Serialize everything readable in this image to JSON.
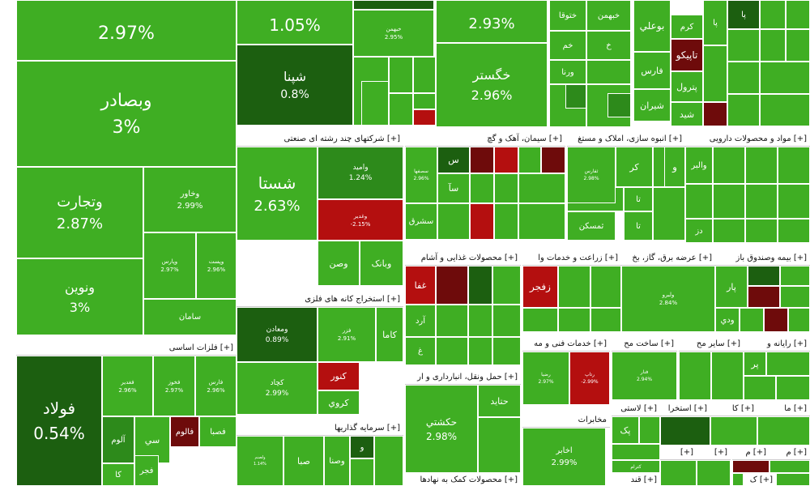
{
  "colors": {
    "green": "#3fae23",
    "green_dark": "#2d8a1b",
    "green_darker": "#1c5f10",
    "red": "#b40f0f",
    "red_dark": "#6e0b0b",
    "header_bg": "#ffffff"
  },
  "chart_data": {
    "type": "treemap",
    "title": "",
    "groups": [
      {
        "name": "[+] فلزات اساسی"
      },
      {
        "name": "[+] شرکتهای چند رشته ای صنعتی"
      },
      {
        "name": "[+] استخراج کانه های فلزی"
      },
      {
        "name": "[+] سرمایه گذاریها"
      },
      {
        "name": "[+] سیمان، آهک و گچ"
      },
      {
        "name": "[+] انبوه سازی، املاک و مستغ"
      },
      {
        "name": "[+] مواد و محصولات دارویی"
      },
      {
        "name": "[+] محصولات غذایی و آشام"
      },
      {
        "name": "[+] زراعت و خدمات وا"
      },
      {
        "name": "[+] عرضه برق، گاز، بخ"
      },
      {
        "name": "[+] بیمه وصندوق باز"
      },
      {
        "name": "[+] حمل ونقل، انبارداری و ار"
      },
      {
        "name": "[+] خدمات فنی و مه"
      },
      {
        "name": "[+] ساخت مح"
      },
      {
        "name": "[+] سایر مح"
      },
      {
        "name": "[+] رایانه و"
      },
      {
        "name": "مخابرات"
      },
      {
        "name": "[+] لاستی"
      },
      {
        "name": "[+] استخرا"
      },
      {
        "name": "[+] کا"
      },
      {
        "name": "[+] ما"
      },
      {
        "name": "[+] محصولات کمک به نهادها"
      },
      {
        "name": "[+]"
      },
      {
        "name": "[+]"
      },
      {
        "name": "[+] م"
      },
      {
        "name": "[+] م"
      },
      {
        "name": "[+] ک"
      },
      {
        "name": "[+] قند"
      }
    ],
    "items": [
      {
        "symbol": "",
        "change_pct": "2.97%"
      },
      {
        "symbol": "وبصادر",
        "change_pct": "3%"
      },
      {
        "symbol": "وتجارت",
        "change_pct": "2.87%"
      },
      {
        "symbol": "ونوین",
        "change_pct": "3%"
      },
      {
        "symbol": "وخاور",
        "change_pct": "2.99%"
      },
      {
        "symbol": "وپارس",
        "change_pct": "2.97%"
      },
      {
        "symbol": "وپست",
        "change_pct": "2.96%"
      },
      {
        "symbol": "سامان",
        "change_pct": ""
      },
      {
        "symbol": "",
        "change_pct": "1.05%"
      },
      {
        "symbol": "شپنا",
        "change_pct": "0.8%"
      },
      {
        "symbol": "خبهمن",
        "change_pct": "2.95%"
      },
      {
        "symbol": "",
        "change_pct": "2.93%"
      },
      {
        "symbol": "خگستر",
        "change_pct": "2.96%"
      },
      {
        "symbol": "خبهمن",
        "change_pct": ""
      },
      {
        "symbol": "ختوقا",
        "change_pct": ""
      },
      {
        "symbol": "خم",
        "change_pct": ""
      },
      {
        "symbol": "خ",
        "change_pct": ""
      },
      {
        "symbol": "ورنا",
        "change_pct": ""
      },
      {
        "symbol": "بوعلي",
        "change_pct": ""
      },
      {
        "symbol": "کرم",
        "change_pct": ""
      },
      {
        "symbol": "پا",
        "change_pct": ""
      },
      {
        "symbol": "پا",
        "change_pct": ""
      },
      {
        "symbol": "تاپيکو",
        "change_pct": ""
      },
      {
        "symbol": "فارس",
        "change_pct": ""
      },
      {
        "symbol": "پترول",
        "change_pct": ""
      },
      {
        "symbol": "شيران",
        "change_pct": ""
      },
      {
        "symbol": "شيد",
        "change_pct": ""
      },
      {
        "symbol": "شستا",
        "change_pct": "2.63%"
      },
      {
        "symbol": "واميد",
        "change_pct": "1.24%"
      },
      {
        "symbol": "وغدير",
        "change_pct": "-2.15%"
      },
      {
        "symbol": "وصن",
        "change_pct": ""
      },
      {
        "symbol": "وبانک",
        "change_pct": ""
      },
      {
        "symbol": "فولاد",
        "change_pct": "0.54%"
      },
      {
        "symbol": "فغدير",
        "change_pct": "2.96%"
      },
      {
        "symbol": "فخوز",
        "change_pct": "2.97%"
      },
      {
        "symbol": "فارس",
        "change_pct": "2.96%"
      },
      {
        "symbol": "آلوم",
        "change_pct": ""
      },
      {
        "symbol": "سي",
        "change_pct": ""
      },
      {
        "symbol": "فالوم",
        "change_pct": ""
      },
      {
        "symbol": "فصبا",
        "change_pct": ""
      },
      {
        "symbol": "فجر",
        "change_pct": ""
      },
      {
        "symbol": "کا",
        "change_pct": ""
      },
      {
        "symbol": "ومعادن",
        "change_pct": "0.89%"
      },
      {
        "symbol": "فزر",
        "change_pct": "2.91%"
      },
      {
        "symbol": "کاما",
        "change_pct": ""
      },
      {
        "symbol": "کچاد",
        "change_pct": "2.99%"
      },
      {
        "symbol": "کنور",
        "change_pct": ""
      },
      {
        "symbol": "کروي",
        "change_pct": ""
      },
      {
        "symbol": "صبا",
        "change_pct": ""
      },
      {
        "symbol": "وصنا",
        "change_pct": ""
      },
      {
        "symbol": "و",
        "change_pct": ""
      },
      {
        "symbol": "ولصنم",
        "change_pct": "1.14%"
      },
      {
        "symbol": "سصفها",
        "change_pct": "2.96%"
      },
      {
        "symbol": "سآ",
        "change_pct": ""
      },
      {
        "symbol": "س",
        "change_pct": ""
      },
      {
        "symbol": "سشرق",
        "change_pct": ""
      },
      {
        "symbol": "ثفارس",
        "change_pct": "2.98%"
      },
      {
        "symbol": "کر",
        "change_pct": ""
      },
      {
        "symbol": "ث",
        "change_pct": ""
      },
      {
        "symbol": "و",
        "change_pct": ""
      },
      {
        "symbol": "تا",
        "change_pct": ""
      },
      {
        "symbol": "تا",
        "change_pct": ""
      },
      {
        "symbol": "ثمسکن",
        "change_pct": ""
      },
      {
        "symbol": "والبر",
        "change_pct": ""
      },
      {
        "symbol": "دز",
        "change_pct": ""
      },
      {
        "symbol": "غفا",
        "change_pct": ""
      },
      {
        "symbol": "آرد",
        "change_pct": ""
      },
      {
        "symbol": "غ",
        "change_pct": ""
      },
      {
        "symbol": "زفجر",
        "change_pct": ""
      },
      {
        "symbol": "ولبرو",
        "change_pct": "2.84%"
      },
      {
        "symbol": "پار",
        "change_pct": ""
      },
      {
        "symbol": "ودي",
        "change_pct": ""
      },
      {
        "symbol": "حتايد",
        "change_pct": ""
      },
      {
        "symbol": "حکشتي",
        "change_pct": "2.98%"
      },
      {
        "symbol": "رضيا",
        "change_pct": "2.97%"
      },
      {
        "symbol": "رتاپ",
        "change_pct": "-2.99%"
      },
      {
        "symbol": "فنار",
        "change_pct": "2.94%"
      },
      {
        "symbol": "پر",
        "change_pct": ""
      },
      {
        "symbol": "اخابر",
        "change_pct": "2.99%"
      },
      {
        "symbol": "پک",
        "change_pct": ""
      },
      {
        "symbol": "کترام",
        "change_pct": ""
      },
      {
        "symbol": "",
        "change_pct": ""
      }
    ]
  }
}
